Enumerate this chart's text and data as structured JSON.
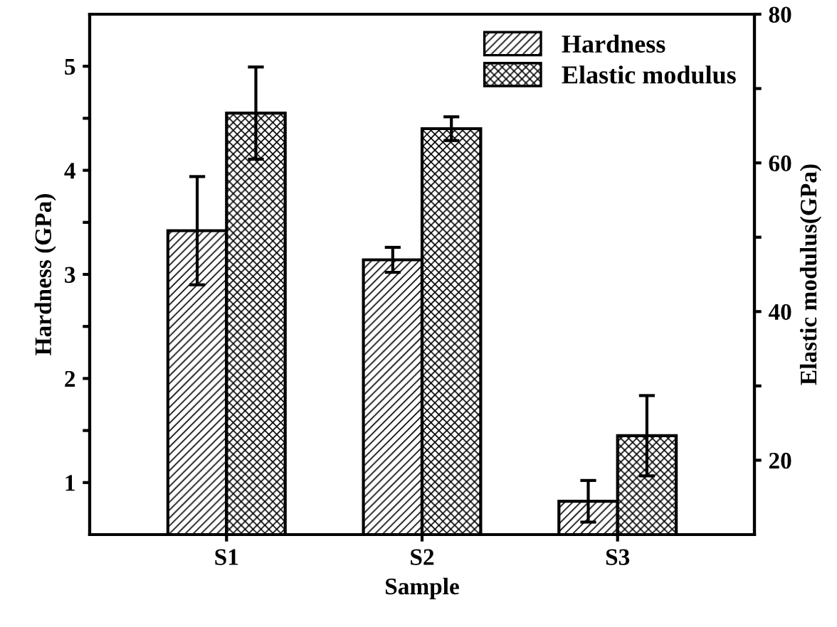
{
  "chart_data": {
    "type": "bar",
    "xlabel": "Sample",
    "ylabel": "Hardness (GPa)",
    "y2label": "Elastic modulus(GPa)",
    "categories": [
      "S1",
      "S2",
      "S3"
    ],
    "series": [
      {
        "name": "Hardness",
        "color": "#000000",
        "values": [
          3.42,
          3.14,
          0.82
        ],
        "errors": [
          0.52,
          0.12,
          0.2
        ]
      },
      {
        "name": "Elastic modulus",
        "color": "#000000",
        "axis": "y2",
        "values": [
          66.7,
          64.6,
          23.3
        ],
        "errors": [
          6.2,
          1.6,
          5.4
        ]
      }
    ],
    "ylim": [
      0.5,
      5.5
    ],
    "yticks": [
      1,
      {
        "value": 1.5,
        "label": null
      },
      2,
      {
        "value": 2.5,
        "label": null
      },
      3,
      {
        "value": 3.5,
        "label": null
      },
      4,
      {
        "value": 4.5,
        "label": null
      },
      5
    ],
    "y2lim": [
      10,
      80
    ],
    "y2ticks": [
      20,
      {
        "value": 30,
        "label": null
      },
      40,
      {
        "value": 50,
        "label": null
      },
      60,
      {
        "value": 70,
        "label": null
      },
      80
    ],
    "legend": "top right",
    "grid": false
  }
}
